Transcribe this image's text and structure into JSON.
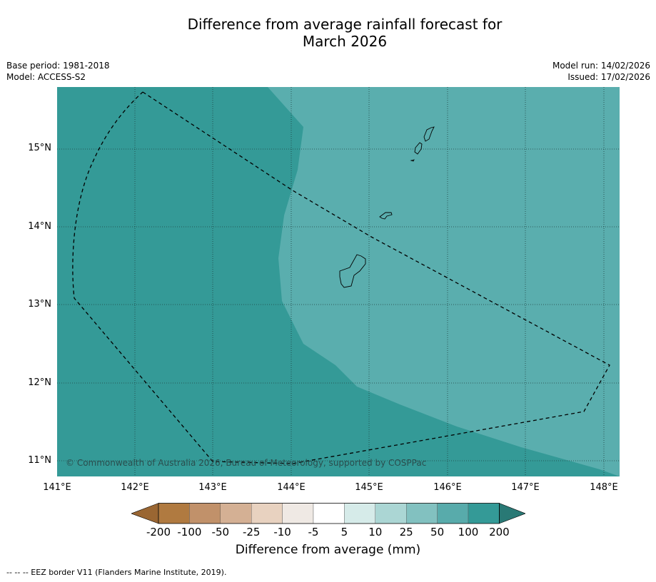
{
  "title_line1": "Difference from average rainfall forecast for",
  "title_line2": "March 2026",
  "meta": {
    "base_period": "Base period: 1981-2018",
    "model": "Model: ACCESS-S2",
    "model_run": "Model run: 14/02/2026",
    "issued": "Issued: 17/02/2026"
  },
  "copyright": "© Commonwealth of Australia 2026, Bureau of Meteorology, supported by COSPPac",
  "lat_labels": [
    "15°N",
    "14°N",
    "13°N",
    "12°N",
    "11°N"
  ],
  "lon_labels": [
    "141°E",
    "142°E",
    "143°E",
    "144°E",
    "145°E",
    "146°E",
    "147°E",
    "148°E"
  ],
  "colorbar": {
    "ticks": [
      "-200",
      "-100",
      "-50",
      "-25",
      "-10",
      "-5",
      "5",
      "10",
      "25",
      "50",
      "100",
      "200"
    ],
    "colors": [
      "#9a6632",
      "#b07a40",
      "#c1916a",
      "#d4b094",
      "#e8d2c0",
      "#efe9e4",
      "#ffffff",
      "#d6ebe9",
      "#abd6d4",
      "#82c1c0",
      "#58abab",
      "#349a97",
      "#297975"
    ],
    "title": "Difference from average (mm)"
  },
  "map_colors": {
    "category_100_200": "#349a97",
    "category_50_100": "#5aaeae"
  },
  "footer": "--  --  -- EEZ border V11 (Flanders Marine Institute, 2019)."
}
